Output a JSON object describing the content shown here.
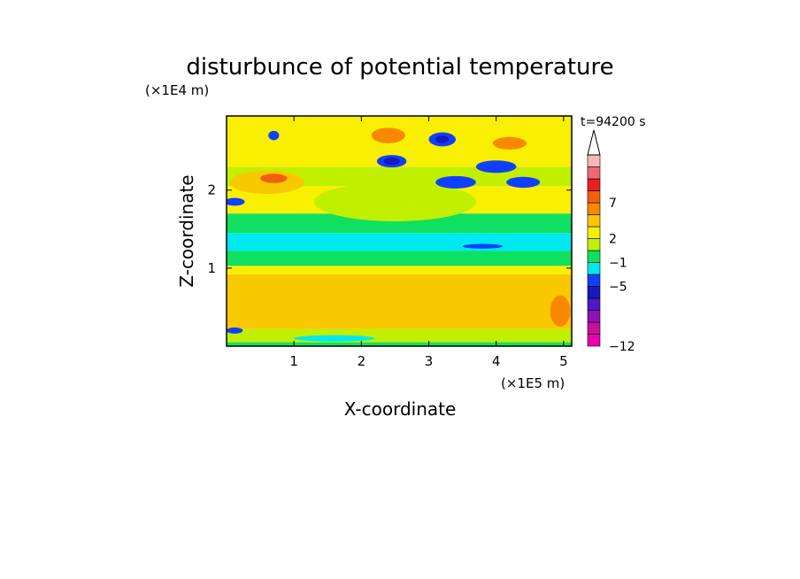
{
  "chart_data": {
    "type": "heatmap",
    "title": "disturbunce of potential temperature",
    "time_label": "t=94200 s",
    "xlabel": "X-coordinate",
    "ylabel": "Z-coordinate",
    "x_scale_label": "(×1E5 m)",
    "y_scale_label": "(×1E4 m)",
    "xlim": [
      0,
      5.12
    ],
    "ylim": [
      0,
      2.95
    ],
    "x_ticks": [
      1,
      2,
      3,
      4,
      5
    ],
    "y_ticks": [
      1,
      2
    ],
    "colorbar": {
      "colors": [
        "#e800b0",
        "#c8109c",
        "#9010b8",
        "#5018c8",
        "#1818c0",
        "#1040ff",
        "#00e8f0",
        "#10e060",
        "#c0f000",
        "#f8f000",
        "#f8c800",
        "#f88800",
        "#f06010",
        "#e82020",
        "#f06878",
        "#f8b8b8"
      ],
      "tick_labels": [
        "-12",
        "-5",
        "-1",
        "2",
        "7"
      ],
      "tick_index": [
        0,
        5,
        7,
        9,
        12
      ],
      "extend_top": true
    },
    "field_bands": [
      {
        "z": [
          0.0,
          0.05
        ],
        "level": 7
      },
      {
        "z": [
          0.05,
          0.22
        ],
        "level": 8
      },
      {
        "z": [
          0.22,
          0.55
        ],
        "level": 10
      },
      {
        "z": [
          0.55,
          0.92
        ],
        "level": 10
      },
      {
        "z": [
          0.92,
          1.03
        ],
        "level": 9
      },
      {
        "z": [
          1.03,
          1.22
        ],
        "level": 7
      },
      {
        "z": [
          1.22,
          1.45
        ],
        "level": 6
      },
      {
        "z": [
          1.45,
          1.7
        ],
        "level": 7
      },
      {
        "z": [
          1.7,
          2.05
        ],
        "level": 9
      },
      {
        "z": [
          2.05,
          2.3
        ],
        "level": 8
      },
      {
        "z": [
          2.3,
          2.95
        ],
        "level": 9
      }
    ],
    "features": [
      {
        "x": 0.8,
        "z": 0.7,
        "rx": 0.75,
        "rz": 0.08,
        "level": 10
      },
      {
        "x": 3.6,
        "z": 0.5,
        "rx": 0.9,
        "rz": 0.12,
        "level": 10
      },
      {
        "x": 4.95,
        "z": 0.45,
        "rx": 0.15,
        "rz": 0.2,
        "level": 11
      },
      {
        "x": 2.5,
        "z": 1.85,
        "rx": 1.2,
        "rz": 0.25,
        "level": 8
      },
      {
        "x": 0.6,
        "z": 2.1,
        "rx": 0.55,
        "rz": 0.15,
        "level": 10
      },
      {
        "x": 0.7,
        "z": 2.15,
        "rx": 0.2,
        "rz": 0.06,
        "level": 12
      },
      {
        "x": 2.45,
        "z": 2.37,
        "rx": 0.22,
        "rz": 0.08,
        "level": 5
      },
      {
        "x": 2.45,
        "z": 2.37,
        "rx": 0.12,
        "rz": 0.05,
        "level": 4
      },
      {
        "x": 3.2,
        "z": 2.65,
        "rx": 0.2,
        "rz": 0.09,
        "level": 5
      },
      {
        "x": 3.2,
        "z": 2.65,
        "rx": 0.1,
        "rz": 0.05,
        "level": 4
      },
      {
        "x": 3.4,
        "z": 2.1,
        "rx": 0.3,
        "rz": 0.08,
        "level": 5
      },
      {
        "x": 4.0,
        "z": 2.3,
        "rx": 0.3,
        "rz": 0.08,
        "level": 5
      },
      {
        "x": 4.4,
        "z": 2.1,
        "rx": 0.25,
        "rz": 0.07,
        "level": 5
      },
      {
        "x": 0.7,
        "z": 2.7,
        "rx": 0.08,
        "rz": 0.06,
        "level": 5
      },
      {
        "x": 0.12,
        "z": 1.85,
        "rx": 0.15,
        "rz": 0.05,
        "level": 5
      },
      {
        "x": 2.4,
        "z": 2.7,
        "rx": 0.25,
        "rz": 0.1,
        "level": 11
      },
      {
        "x": 4.2,
        "z": 2.6,
        "rx": 0.25,
        "rz": 0.08,
        "level": 11
      },
      {
        "x": 0.12,
        "z": 0.2,
        "rx": 0.12,
        "rz": 0.04,
        "level": 5
      },
      {
        "x": 1.6,
        "z": 0.1,
        "rx": 0.6,
        "rz": 0.04,
        "level": 6
      },
      {
        "x": 3.8,
        "z": 1.28,
        "rx": 0.3,
        "rz": 0.03,
        "level": 5
      }
    ]
  }
}
